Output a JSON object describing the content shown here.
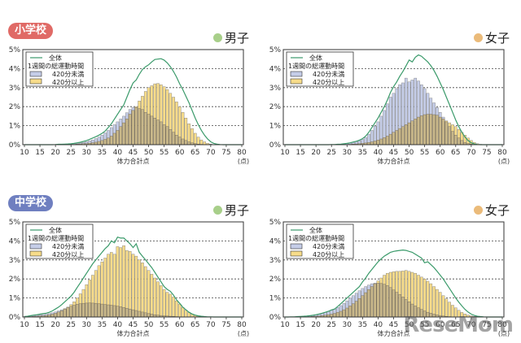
{
  "colors": {
    "total_line": "#3a9a6a",
    "under_420": "#c5cde8",
    "over_420": "#f7dc8a",
    "overlap": "#c9b88a",
    "elementary_badge": "#e06a66",
    "junior_badge": "#6f7fc0",
    "boys_dot": "#a8cf8a",
    "girls_dot": "#ebbb7a"
  },
  "watermark": "ReseMom",
  "chart_data": [
    {
      "type": "bar",
      "school": "小学校",
      "gender": "男子",
      "title": "小学校 男子",
      "xlabel": "体力合計点",
      "xunit": "(点)",
      "ylabel": "",
      "ylim": [
        0,
        5
      ],
      "xlim": [
        10,
        80
      ],
      "yticks": [
        "0%",
        "1%",
        "2%",
        "3%",
        "4%",
        "5%"
      ],
      "xticks": [
        "10",
        "15",
        "20",
        "25",
        "30",
        "35",
        "40",
        "45",
        "50",
        "55",
        "60",
        "65",
        "70",
        "75",
        "80"
      ],
      "grid": true,
      "legend": {
        "position": "top-left",
        "title": "1週間の総運動時間",
        "entries": [
          "全体",
          "420分未満",
          "420分以上"
        ]
      },
      "x_start": 10,
      "series": [
        {
          "name": "全体",
          "kind": "line",
          "values": [
            0,
            0,
            0,
            0,
            0,
            0,
            0,
            0,
            0,
            0,
            0.01,
            0.02,
            0.02,
            0.03,
            0.04,
            0.05,
            0.07,
            0.1,
            0.13,
            0.17,
            0.22,
            0.28,
            0.35,
            0.42,
            0.5,
            0.6,
            0.72,
            0.9,
            1.1,
            1.35,
            1.6,
            1.85,
            2.1,
            2.5,
            2.9,
            3.25,
            3.4,
            3.7,
            3.95,
            4.1,
            4.2,
            4.35,
            4.48,
            4.5,
            4.52,
            4.45,
            4.3,
            4.1,
            3.85,
            3.55,
            3.2,
            2.9,
            2.55,
            2.2,
            1.8,
            1.4,
            1.05,
            0.75,
            0.5,
            0.3,
            0.15,
            0.07,
            0.03,
            0.01,
            0,
            0,
            0,
            0,
            0,
            0,
            0
          ]
        },
        {
          "name": "420分未満",
          "kind": "bar",
          "values": [
            0,
            0,
            0,
            0,
            0,
            0,
            0,
            0,
            0,
            0,
            0.01,
            0.01,
            0.02,
            0.02,
            0.03,
            0.04,
            0.05,
            0.07,
            0.09,
            0.12,
            0.16,
            0.2,
            0.25,
            0.32,
            0.4,
            0.5,
            0.62,
            0.75,
            0.9,
            1.05,
            1.2,
            1.35,
            1.5,
            1.68,
            1.85,
            1.95,
            1.95,
            1.9,
            1.85,
            1.7,
            1.6,
            1.5,
            1.4,
            1.3,
            1.2,
            1.05,
            0.95,
            0.8,
            0.65,
            0.5,
            0.4,
            0.3,
            0.22,
            0.15,
            0.1,
            0.06,
            0.03,
            0.02,
            0.01,
            0,
            0,
            0,
            0,
            0,
            0,
            0,
            0,
            0,
            0,
            0,
            0
          ]
        },
        {
          "name": "420分以上",
          "kind": "bar",
          "values": [
            0,
            0,
            0,
            0,
            0,
            0,
            0,
            0,
            0,
            0,
            0,
            0,
            0,
            0,
            0.01,
            0.01,
            0.02,
            0.03,
            0.04,
            0.05,
            0.06,
            0.08,
            0.1,
            0.13,
            0.17,
            0.22,
            0.28,
            0.35,
            0.45,
            0.6,
            0.75,
            0.95,
            1.15,
            1.35,
            1.6,
            1.8,
            2.0,
            2.3,
            2.55,
            2.8,
            3.0,
            3.1,
            3.2,
            3.22,
            3.15,
            3.05,
            2.9,
            2.7,
            2.5,
            2.25,
            2.0,
            1.7,
            1.4,
            1.1,
            0.85,
            0.6,
            0.4,
            0.25,
            0.15,
            0.07,
            0.03,
            0.01,
            0,
            0,
            0,
            0,
            0,
            0,
            0,
            0,
            0
          ]
        }
      ]
    },
    {
      "type": "bar",
      "school": "小学校",
      "gender": "女子",
      "title": "小学校 女子",
      "xlabel": "体力合計点",
      "xunit": "(点)",
      "ylabel": "",
      "ylim": [
        0,
        5
      ],
      "xlim": [
        10,
        80
      ],
      "yticks": [
        "0%",
        "1%",
        "2%",
        "3%",
        "4%",
        "5%"
      ],
      "xticks": [
        "10",
        "15",
        "20",
        "25",
        "30",
        "35",
        "40",
        "45",
        "50",
        "55",
        "60",
        "65",
        "70",
        "75",
        "80"
      ],
      "grid": true,
      "legend": {
        "position": "top-left",
        "title": "1週間の総運動時間",
        "entries": [
          "全体",
          "420分未満",
          "420分以上"
        ]
      },
      "x_start": 10,
      "series": [
        {
          "name": "全体",
          "kind": "line",
          "values": [
            0,
            0,
            0,
            0,
            0,
            0,
            0,
            0,
            0,
            0,
            0,
            0,
            0,
            0,
            0,
            0.01,
            0.01,
            0.02,
            0.03,
            0.05,
            0.07,
            0.1,
            0.14,
            0.18,
            0.24,
            0.32,
            0.45,
            0.65,
            0.9,
            1.15,
            1.4,
            1.7,
            2.0,
            2.35,
            2.75,
            3.05,
            3.3,
            3.6,
            3.85,
            4.15,
            4.45,
            4.35,
            4.6,
            4.72,
            4.65,
            4.5,
            4.35,
            4.15,
            3.9,
            3.6,
            3.25,
            2.9,
            2.5,
            2.1,
            1.7,
            1.3,
            0.95,
            0.65,
            0.4,
            0.22,
            0.1,
            0.04,
            0.01,
            0,
            0,
            0,
            0,
            0,
            0,
            0,
            0
          ]
        },
        {
          "name": "420分未満",
          "kind": "bar",
          "values": [
            0,
            0,
            0,
            0,
            0,
            0,
            0,
            0,
            0,
            0,
            0,
            0,
            0,
            0,
            0,
            0.01,
            0.01,
            0.02,
            0.03,
            0.04,
            0.06,
            0.09,
            0.12,
            0.16,
            0.21,
            0.28,
            0.38,
            0.55,
            0.75,
            0.98,
            1.2,
            1.5,
            1.8,
            2.15,
            2.5,
            2.7,
            2.95,
            3.15,
            3.25,
            3.5,
            3.3,
            3.4,
            3.5,
            3.35,
            3.15,
            2.95,
            2.7,
            2.45,
            2.2,
            1.95,
            1.7,
            1.45,
            1.2,
            0.95,
            0.7,
            0.5,
            0.35,
            0.22,
            0.12,
            0.06,
            0.03,
            0.01,
            0,
            0,
            0,
            0,
            0,
            0,
            0,
            0,
            0
          ]
        },
        {
          "name": "420分以上",
          "kind": "bar",
          "values": [
            0,
            0,
            0,
            0,
            0,
            0,
            0,
            0,
            0,
            0,
            0,
            0,
            0,
            0,
            0,
            0,
            0,
            0,
            0,
            0.01,
            0.01,
            0.02,
            0.03,
            0.04,
            0.05,
            0.07,
            0.09,
            0.12,
            0.15,
            0.19,
            0.24,
            0.3,
            0.37,
            0.45,
            0.55,
            0.65,
            0.75,
            0.85,
            0.95,
            1.05,
            1.15,
            1.25,
            1.35,
            1.45,
            1.52,
            1.58,
            1.6,
            1.6,
            1.58,
            1.55,
            1.45,
            1.35,
            1.25,
            1.15,
            1.05,
            0.95,
            0.8,
            0.65,
            0.5,
            0.35,
            0.22,
            0.12,
            0.05,
            0.02,
            0,
            0,
            0,
            0,
            0,
            0,
            0
          ]
        }
      ]
    },
    {
      "type": "bar",
      "school": "中学校",
      "gender": "男子",
      "title": "中学校 男子",
      "xlabel": "体力合計点",
      "xunit": "(点)",
      "ylabel": "",
      "ylim": [
        0,
        5
      ],
      "xlim": [
        10,
        80
      ],
      "yticks": [
        "0%",
        "1%",
        "2%",
        "3%",
        "4%",
        "5%"
      ],
      "xticks": [
        "10",
        "15",
        "20",
        "25",
        "30",
        "35",
        "40",
        "45",
        "50",
        "55",
        "60",
        "65",
        "70",
        "75",
        "80"
      ],
      "grid": true,
      "legend": {
        "position": "top-left",
        "title": "1週間の総運動時間",
        "entries": [
          "全体",
          "420分未満",
          "420分以上"
        ]
      },
      "x_start": 10,
      "series": [
        {
          "name": "全体",
          "kind": "line",
          "values": [
            0.02,
            0.04,
            0.07,
            0.1,
            0.12,
            0.15,
            0.18,
            0.2,
            0.25,
            0.32,
            0.42,
            0.52,
            0.65,
            0.8,
            0.95,
            1.1,
            1.3,
            1.55,
            1.8,
            2.05,
            2.3,
            2.55,
            2.8,
            3.0,
            3.2,
            3.4,
            3.6,
            3.75,
            4.0,
            3.9,
            4.2,
            4.15,
            4.15,
            4.0,
            3.85,
            3.65,
            3.85,
            3.4,
            3.2,
            3.0,
            2.8,
            2.6,
            2.35,
            2.1,
            1.85,
            1.6,
            1.45,
            1.35,
            1.15,
            0.9,
            0.72,
            0.52,
            0.38,
            0.25,
            0.16,
            0.1,
            0.06,
            0.04,
            0.02,
            0.01,
            0.01,
            0,
            0,
            0,
            0,
            0,
            0,
            0,
            0,
            0,
            0
          ]
        },
        {
          "name": "420分未満",
          "kind": "bar",
          "values": [
            0.02,
            0.03,
            0.05,
            0.07,
            0.09,
            0.11,
            0.13,
            0.15,
            0.18,
            0.22,
            0.27,
            0.32,
            0.38,
            0.44,
            0.5,
            0.56,
            0.62,
            0.67,
            0.7,
            0.72,
            0.73,
            0.74,
            0.73,
            0.72,
            0.7,
            0.68,
            0.66,
            0.64,
            0.62,
            0.6,
            0.57,
            0.54,
            0.5,
            0.46,
            0.42,
            0.38,
            0.34,
            0.3,
            0.26,
            0.22,
            0.18,
            0.15,
            0.12,
            0.1,
            0.08,
            0.06,
            0.05,
            0.04,
            0.03,
            0.02,
            0.01,
            0.01,
            0,
            0,
            0,
            0,
            0,
            0,
            0,
            0,
            0,
            0,
            0,
            0,
            0,
            0,
            0,
            0,
            0,
            0,
            0
          ]
        },
        {
          "name": "420分以上",
          "kind": "bar",
          "values": [
            0,
            0.01,
            0.02,
            0.03,
            0.04,
            0.05,
            0.06,
            0.08,
            0.11,
            0.15,
            0.2,
            0.26,
            0.33,
            0.42,
            0.52,
            0.65,
            0.8,
            1.0,
            1.22,
            1.45,
            1.7,
            1.95,
            2.2,
            2.45,
            2.7,
            2.9,
            3.1,
            3.3,
            3.4,
            3.3,
            3.7,
            3.65,
            3.75,
            3.5,
            3.45,
            3.3,
            3.2,
            3.0,
            2.85,
            2.65,
            2.45,
            2.25,
            2.05,
            1.85,
            1.65,
            1.45,
            1.3,
            1.2,
            1.05,
            0.85,
            0.68,
            0.5,
            0.36,
            0.24,
            0.15,
            0.09,
            0.05,
            0.03,
            0.02,
            0.01,
            0.01,
            0,
            0,
            0,
            0,
            0,
            0,
            0,
            0,
            0,
            0
          ]
        }
      ]
    },
    {
      "type": "bar",
      "school": "中学校",
      "gender": "女子",
      "title": "中学校 女子",
      "xlabel": "体力合計点",
      "xunit": "(点)",
      "ylabel": "",
      "ylim": [
        0,
        5
      ],
      "xlim": [
        10,
        80
      ],
      "yticks": [
        "0%",
        "1%",
        "2%",
        "3%",
        "4%",
        "5%"
      ],
      "xticks": [
        "10",
        "15",
        "20",
        "25",
        "30",
        "35",
        "40",
        "45",
        "50",
        "55",
        "60",
        "65",
        "70",
        "75",
        "80"
      ],
      "grid": true,
      "legend": {
        "position": "top-left",
        "title": "1週間の総運動時間",
        "entries": [
          "全体",
          "420分未満",
          "420分以上"
        ]
      },
      "x_start": 10,
      "series": [
        {
          "name": "全体",
          "kind": "line",
          "values": [
            0,
            0,
            0.01,
            0.01,
            0.02,
            0.03,
            0.04,
            0.05,
            0.07,
            0.09,
            0.12,
            0.16,
            0.2,
            0.25,
            0.3,
            0.37,
            0.42,
            0.55,
            0.7,
            0.85,
            1.0,
            1.15,
            1.3,
            1.45,
            1.6,
            1.85,
            2.05,
            2.3,
            2.5,
            2.7,
            2.9,
            3.05,
            3.2,
            3.3,
            3.4,
            3.45,
            3.48,
            3.5,
            3.52,
            3.5,
            3.45,
            3.4,
            3.3,
            3.2,
            3.1,
            2.85,
            2.9,
            2.75,
            2.6,
            2.4,
            2.2,
            2.0,
            1.75,
            1.5,
            1.25,
            1.0,
            0.78,
            0.58,
            0.4,
            0.26,
            0.15,
            0.08,
            0.04,
            0.02,
            0.01,
            0,
            0,
            0,
            0,
            0,
            0
          ]
        },
        {
          "name": "420分未満",
          "kind": "bar",
          "values": [
            0,
            0,
            0.01,
            0.01,
            0.02,
            0.03,
            0.04,
            0.05,
            0.07,
            0.09,
            0.12,
            0.15,
            0.19,
            0.24,
            0.29,
            0.35,
            0.42,
            0.5,
            0.6,
            0.72,
            0.85,
            1.0,
            1.12,
            1.25,
            1.38,
            1.5,
            1.6,
            1.68,
            1.75,
            1.78,
            1.78,
            1.76,
            1.72,
            1.65,
            1.55,
            1.42,
            1.3,
            1.18,
            1.05,
            0.92,
            0.8,
            0.68,
            0.58,
            0.48,
            0.4,
            0.32,
            0.25,
            0.2,
            0.15,
            0.11,
            0.08,
            0.05,
            0.03,
            0.02,
            0.01,
            0.01,
            0,
            0,
            0,
            0,
            0,
            0,
            0,
            0,
            0,
            0,
            0,
            0,
            0,
            0,
            0
          ]
        },
        {
          "name": "420分以上",
          "kind": "bar",
          "values": [
            0,
            0,
            0,
            0,
            0,
            0,
            0.01,
            0.01,
            0.02,
            0.03,
            0.04,
            0.05,
            0.07,
            0.09,
            0.12,
            0.15,
            0.19,
            0.24,
            0.3,
            0.38,
            0.47,
            0.58,
            0.7,
            0.83,
            0.97,
            1.12,
            1.28,
            1.44,
            1.6,
            1.75,
            1.9,
            2.05,
            2.2,
            2.3,
            2.35,
            2.38,
            2.4,
            2.4,
            2.42,
            2.45,
            2.4,
            2.35,
            2.3,
            2.2,
            2.1,
            2.0,
            1.88,
            1.75,
            1.6,
            1.45,
            1.3,
            1.12,
            0.95,
            0.78,
            0.62,
            0.48,
            0.35,
            0.24,
            0.16,
            0.1,
            0.06,
            0.03,
            0.02,
            0.01,
            0,
            0,
            0,
            0,
            0,
            0,
            0
          ]
        }
      ]
    }
  ]
}
